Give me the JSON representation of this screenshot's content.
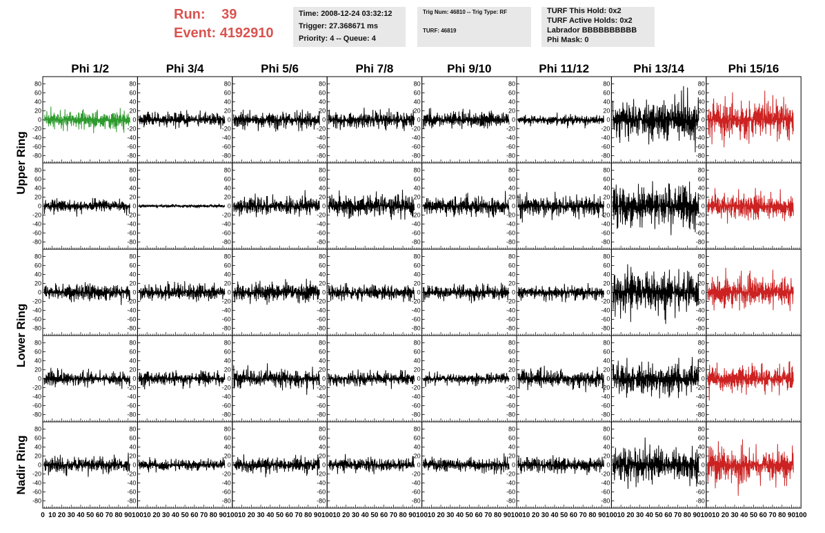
{
  "header": {
    "run_label": "Run:",
    "run_value": "39",
    "event_label": "Event:",
    "event_value": "4192910",
    "accent_color": "#d9534f",
    "box1": [
      "Time: 2008-12-24 03:32:12",
      "Trigger: 27.368671 ms",
      "Priority: 4 -- Queue: 4"
    ],
    "box2": [
      "Trig Num: 46810 -- Trig Type: RF",
      "TURF: 46819"
    ],
    "box3": [
      "TURF This Hold: 0x2",
      "TURF Active Holds: 0x2",
      "Labrador BBBBBBBBBB",
      "Phi Mask: 0"
    ]
  },
  "chart_data": {
    "type": "line",
    "columns": [
      "Phi 1/2",
      "Phi 3/4",
      "Phi 5/6",
      "Phi 7/8",
      "Phi 9/10",
      "Phi 11/12",
      "Phi 13/14",
      "Phi 15/16"
    ],
    "rows": 5,
    "row_labels": [
      "Upper Ring",
      "Lower Ring",
      "Nadir Ring"
    ],
    "row_label_spans": [
      [
        0,
        1
      ],
      [
        2,
        3
      ],
      [
        4,
        4
      ]
    ],
    "ylim": [
      -90,
      90
    ],
    "xlim": [
      0,
      100
    ],
    "yticks": [
      80,
      60,
      40,
      20,
      0,
      -20,
      -40,
      -60,
      -80
    ],
    "x_tick_labels": [
      "0",
      "10",
      "20",
      "30",
      "40",
      "50",
      "60",
      "70",
      "80",
      "90",
      "100"
    ],
    "amplitudes": [
      [
        18,
        14,
        16,
        16,
        16,
        10,
        40,
        35
      ],
      [
        12,
        3,
        18,
        22,
        18,
        20,
        38,
        25
      ],
      [
        15,
        15,
        18,
        15,
        15,
        14,
        38,
        30
      ],
      [
        14,
        14,
        18,
        14,
        10,
        18,
        30,
        25
      ],
      [
        16,
        10,
        15,
        14,
        14,
        16,
        35,
        35
      ]
    ],
    "trace_colors": [
      [
        "#2e9a2e",
        "#000000",
        "#000000",
        "#000000",
        "#000000",
        "#000000",
        "#000000",
        "#cc2222"
      ],
      [
        "#000000",
        "#000000",
        "#000000",
        "#000000",
        "#000000",
        "#000000",
        "#000000",
        "#cc2222"
      ],
      [
        "#000000",
        "#000000",
        "#000000",
        "#000000",
        "#000000",
        "#000000",
        "#000000",
        "#cc2222"
      ],
      [
        "#000000",
        "#000000",
        "#000000",
        "#000000",
        "#000000",
        "#000000",
        "#000000",
        "#cc2222"
      ],
      [
        "#000000",
        "#000000",
        "#000000",
        "#000000",
        "#000000",
        "#000000",
        "#000000",
        "#cc2222"
      ]
    ]
  }
}
